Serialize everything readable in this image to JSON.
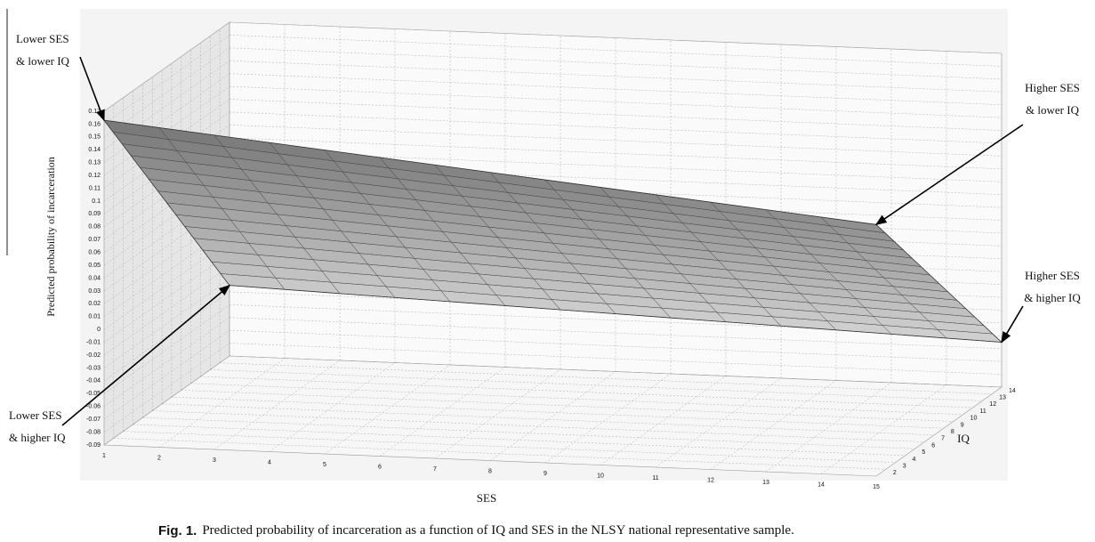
{
  "chart_data": {
    "type": "surface",
    "x_label": "SES",
    "y_label": "IQ",
    "z_label": "Predicted probability of incarceration",
    "xlim": [
      1,
      15
    ],
    "xticks": [
      1,
      2,
      3,
      4,
      5,
      6,
      7,
      8,
      9,
      10,
      11,
      12,
      13,
      14,
      15
    ],
    "ylim": [
      1,
      14
    ],
    "yticks": [
      2,
      3,
      4,
      5,
      6,
      7,
      8,
      9,
      10,
      11,
      12,
      13,
      14
    ],
    "zlim": [
      -0.09,
      0.17
    ],
    "zticks": [
      -0.09,
      -0.08,
      -0.07,
      -0.06,
      -0.05,
      -0.04,
      -0.03,
      -0.02,
      -0.01,
      0,
      0.01,
      0.02,
      0.03,
      0.04,
      0.05,
      0.06,
      0.07,
      0.08,
      0.09,
      0.1,
      0.11,
      0.12,
      0.13,
      0.14,
      0.15,
      0.16,
      0.17
    ],
    "z": [
      [
        0.163,
        0.106
      ],
      [
        -0.035,
        -0.055
      ]
    ],
    "grid": true,
    "annotations": [
      {
        "lines": [
          "Lower SES",
          "& lower IQ"
        ]
      },
      {
        "lines": [
          "Higher SES",
          "& lower IQ"
        ]
      },
      {
        "lines": [
          "Higher SES",
          "& higher IQ"
        ]
      },
      {
        "lines": [
          "Lower SES",
          "& higher IQ"
        ]
      }
    ]
  },
  "caption": {
    "label": "Fig. 1.",
    "text": "Predicted probability of incarceration as a function of IQ and SES in the NLSY national representative sample."
  }
}
